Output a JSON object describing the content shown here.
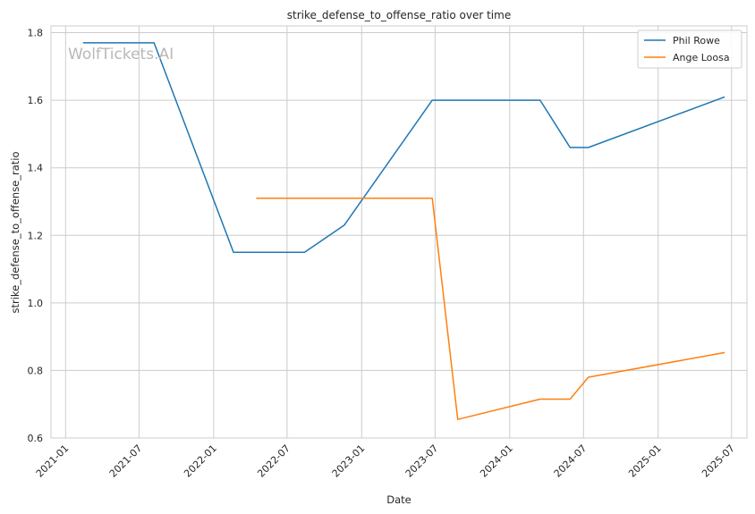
{
  "chart_data": {
    "type": "line",
    "title": "strike_defense_to_offense_ratio over time",
    "xlabel": "Date",
    "ylabel": "strike_defense_to_offense_ratio",
    "x_range": [
      "2020-11-26",
      "2025-08-08"
    ],
    "ylim": [
      0.6,
      1.82
    ],
    "x_ticks": [
      "2021-01",
      "2021-07",
      "2022-01",
      "2022-07",
      "2023-01",
      "2023-07",
      "2024-01",
      "2024-07",
      "2025-01",
      "2025-07"
    ],
    "y_ticks": [
      "0.6",
      "0.8",
      "1.0",
      "1.2",
      "1.4",
      "1.6",
      "1.8"
    ],
    "grid": true,
    "legend_position": "top-right",
    "watermark": "WolfTickets.AI",
    "series": [
      {
        "name": "Phil Rowe",
        "color": "#1f77b4",
        "points": [
          {
            "x": "2021-02-13",
            "y": 1.77
          },
          {
            "x": "2021-08-07",
            "y": 1.77
          },
          {
            "x": "2022-02-19",
            "y": 1.15
          },
          {
            "x": "2022-08-13",
            "y": 1.15
          },
          {
            "x": "2022-11-19",
            "y": 1.23
          },
          {
            "x": "2023-06-24",
            "y": 1.6
          },
          {
            "x": "2024-03-16",
            "y": 1.6
          },
          {
            "x": "2024-05-29",
            "y": 1.46
          },
          {
            "x": "2024-07-13",
            "y": 1.46
          },
          {
            "x": "2025-06-14",
            "y": 1.61
          }
        ]
      },
      {
        "name": "Ange Loosa",
        "color": "#ff7f0e",
        "points": [
          {
            "x": "2022-04-16",
            "y": 1.31
          },
          {
            "x": "2023-06-24",
            "y": 1.31
          },
          {
            "x": "2023-08-26",
            "y": 0.655
          },
          {
            "x": "2024-03-16",
            "y": 0.715
          },
          {
            "x": "2024-05-29",
            "y": 0.715
          },
          {
            "x": "2024-07-13",
            "y": 0.78
          },
          {
            "x": "2025-06-14",
            "y": 0.853
          }
        ]
      }
    ]
  }
}
